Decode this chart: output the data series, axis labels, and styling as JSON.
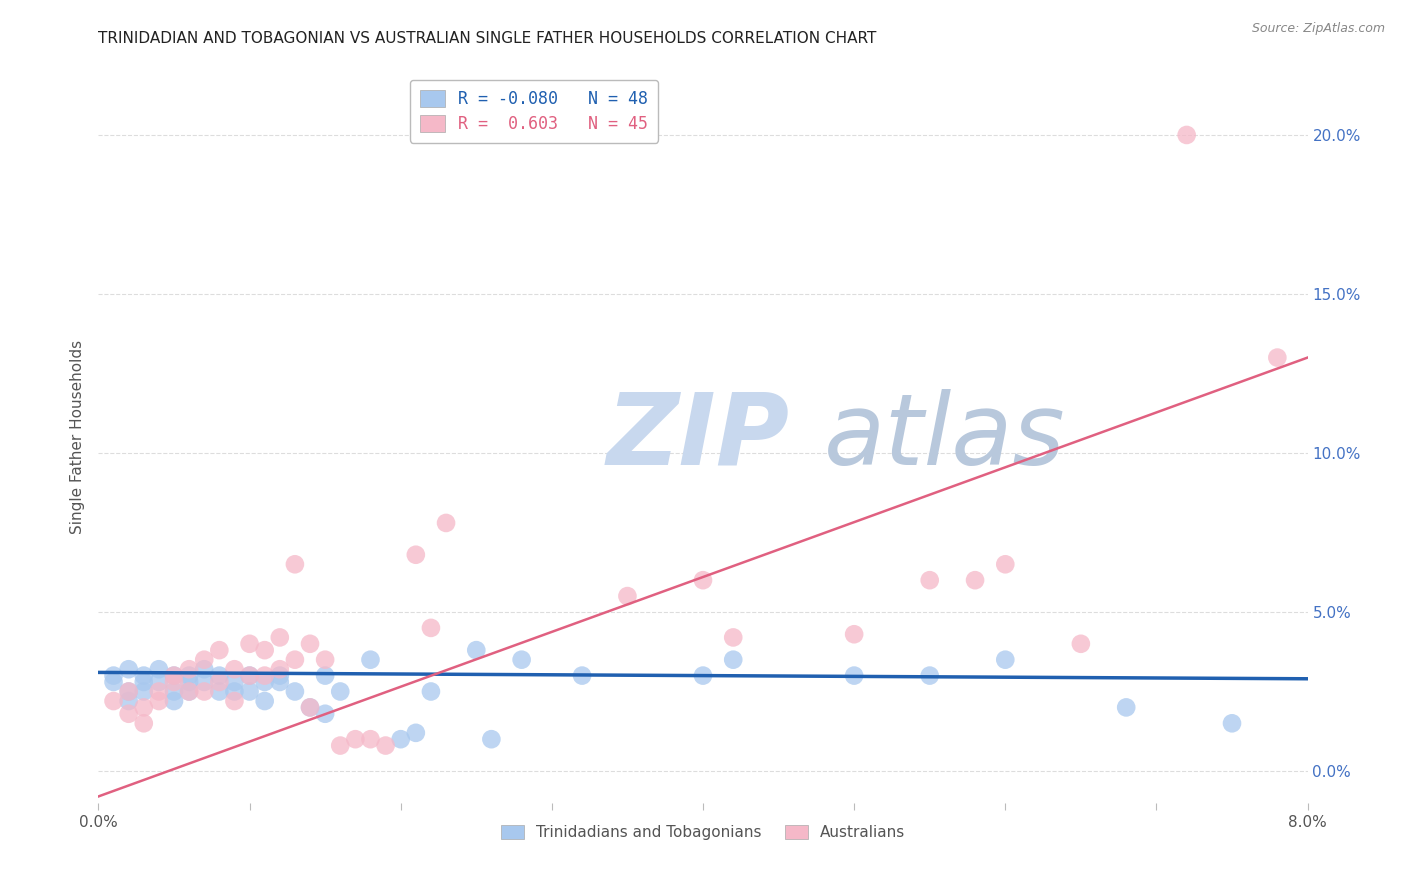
{
  "title": "TRINIDADIAN AND TOBAGONIAN VS AUSTRALIAN SINGLE FATHER HOUSEHOLDS CORRELATION CHART",
  "source": "Source: ZipAtlas.com",
  "ylabel_left": "Single Father Households",
  "x_min": 0.0,
  "x_max": 0.08,
  "y_min": -0.01,
  "y_max": 0.22,
  "right_yticks": [
    0.0,
    0.05,
    0.1,
    0.15,
    0.2
  ],
  "right_yticklabels": [
    "0.0%",
    "5.0%",
    "10.0%",
    "15.0%",
    "20.0%"
  ],
  "bottom_xticks": [
    0.0,
    0.01,
    0.02,
    0.03,
    0.04,
    0.05,
    0.06,
    0.07,
    0.08
  ],
  "bottom_xticklabels": [
    "0.0%",
    "",
    "",
    "",
    "",
    "",
    "",
    "",
    "8.0%"
  ],
  "blue_R": -0.08,
  "blue_N": 48,
  "pink_R": 0.603,
  "pink_N": 45,
  "blue_color": "#A8C8EE",
  "pink_color": "#F5B8C8",
  "blue_line_color": "#2060B0",
  "pink_line_color": "#E06080",
  "blue_scatter": [
    [
      0.001,
      0.03
    ],
    [
      0.001,
      0.028
    ],
    [
      0.002,
      0.032
    ],
    [
      0.002,
      0.025
    ],
    [
      0.002,
      0.022
    ],
    [
      0.003,
      0.03
    ],
    [
      0.003,
      0.028
    ],
    [
      0.003,
      0.025
    ],
    [
      0.004,
      0.032
    ],
    [
      0.004,
      0.028
    ],
    [
      0.005,
      0.03
    ],
    [
      0.005,
      0.025
    ],
    [
      0.005,
      0.022
    ],
    [
      0.006,
      0.03
    ],
    [
      0.006,
      0.028
    ],
    [
      0.006,
      0.025
    ],
    [
      0.007,
      0.032
    ],
    [
      0.007,
      0.028
    ],
    [
      0.008,
      0.03
    ],
    [
      0.008,
      0.025
    ],
    [
      0.009,
      0.028
    ],
    [
      0.009,
      0.025
    ],
    [
      0.01,
      0.03
    ],
    [
      0.01,
      0.025
    ],
    [
      0.011,
      0.028
    ],
    [
      0.011,
      0.022
    ],
    [
      0.012,
      0.03
    ],
    [
      0.012,
      0.028
    ],
    [
      0.013,
      0.025
    ],
    [
      0.014,
      0.02
    ],
    [
      0.015,
      0.03
    ],
    [
      0.015,
      0.018
    ],
    [
      0.016,
      0.025
    ],
    [
      0.018,
      0.035
    ],
    [
      0.02,
      0.01
    ],
    [
      0.021,
      0.012
    ],
    [
      0.022,
      0.025
    ],
    [
      0.025,
      0.038
    ],
    [
      0.026,
      0.01
    ],
    [
      0.028,
      0.035
    ],
    [
      0.032,
      0.03
    ],
    [
      0.04,
      0.03
    ],
    [
      0.042,
      0.035
    ],
    [
      0.05,
      0.03
    ],
    [
      0.055,
      0.03
    ],
    [
      0.06,
      0.035
    ],
    [
      0.068,
      0.02
    ],
    [
      0.075,
      0.015
    ]
  ],
  "pink_scatter": [
    [
      0.001,
      0.022
    ],
    [
      0.002,
      0.018
    ],
    [
      0.002,
      0.025
    ],
    [
      0.003,
      0.02
    ],
    [
      0.003,
      0.015
    ],
    [
      0.004,
      0.025
    ],
    [
      0.004,
      0.022
    ],
    [
      0.005,
      0.03
    ],
    [
      0.005,
      0.028
    ],
    [
      0.006,
      0.032
    ],
    [
      0.006,
      0.025
    ],
    [
      0.007,
      0.035
    ],
    [
      0.007,
      0.025
    ],
    [
      0.008,
      0.038
    ],
    [
      0.008,
      0.028
    ],
    [
      0.009,
      0.032
    ],
    [
      0.009,
      0.022
    ],
    [
      0.01,
      0.04
    ],
    [
      0.01,
      0.03
    ],
    [
      0.011,
      0.038
    ],
    [
      0.011,
      0.03
    ],
    [
      0.012,
      0.042
    ],
    [
      0.012,
      0.032
    ],
    [
      0.013,
      0.065
    ],
    [
      0.013,
      0.035
    ],
    [
      0.014,
      0.04
    ],
    [
      0.014,
      0.02
    ],
    [
      0.015,
      0.035
    ],
    [
      0.016,
      0.008
    ],
    [
      0.017,
      0.01
    ],
    [
      0.018,
      0.01
    ],
    [
      0.019,
      0.008
    ],
    [
      0.021,
      0.068
    ],
    [
      0.022,
      0.045
    ],
    [
      0.023,
      0.078
    ],
    [
      0.035,
      0.055
    ],
    [
      0.04,
      0.06
    ],
    [
      0.042,
      0.042
    ],
    [
      0.05,
      0.043
    ],
    [
      0.055,
      0.06
    ],
    [
      0.058,
      0.06
    ],
    [
      0.06,
      0.065
    ],
    [
      0.065,
      0.04
    ],
    [
      0.072,
      0.2
    ],
    [
      0.078,
      0.13
    ]
  ],
  "watermark_zip_color": "#C8D8EE",
  "watermark_atlas_color": "#B8C8DC",
  "background_color": "#FFFFFF",
  "grid_color": "#DDDDDD"
}
